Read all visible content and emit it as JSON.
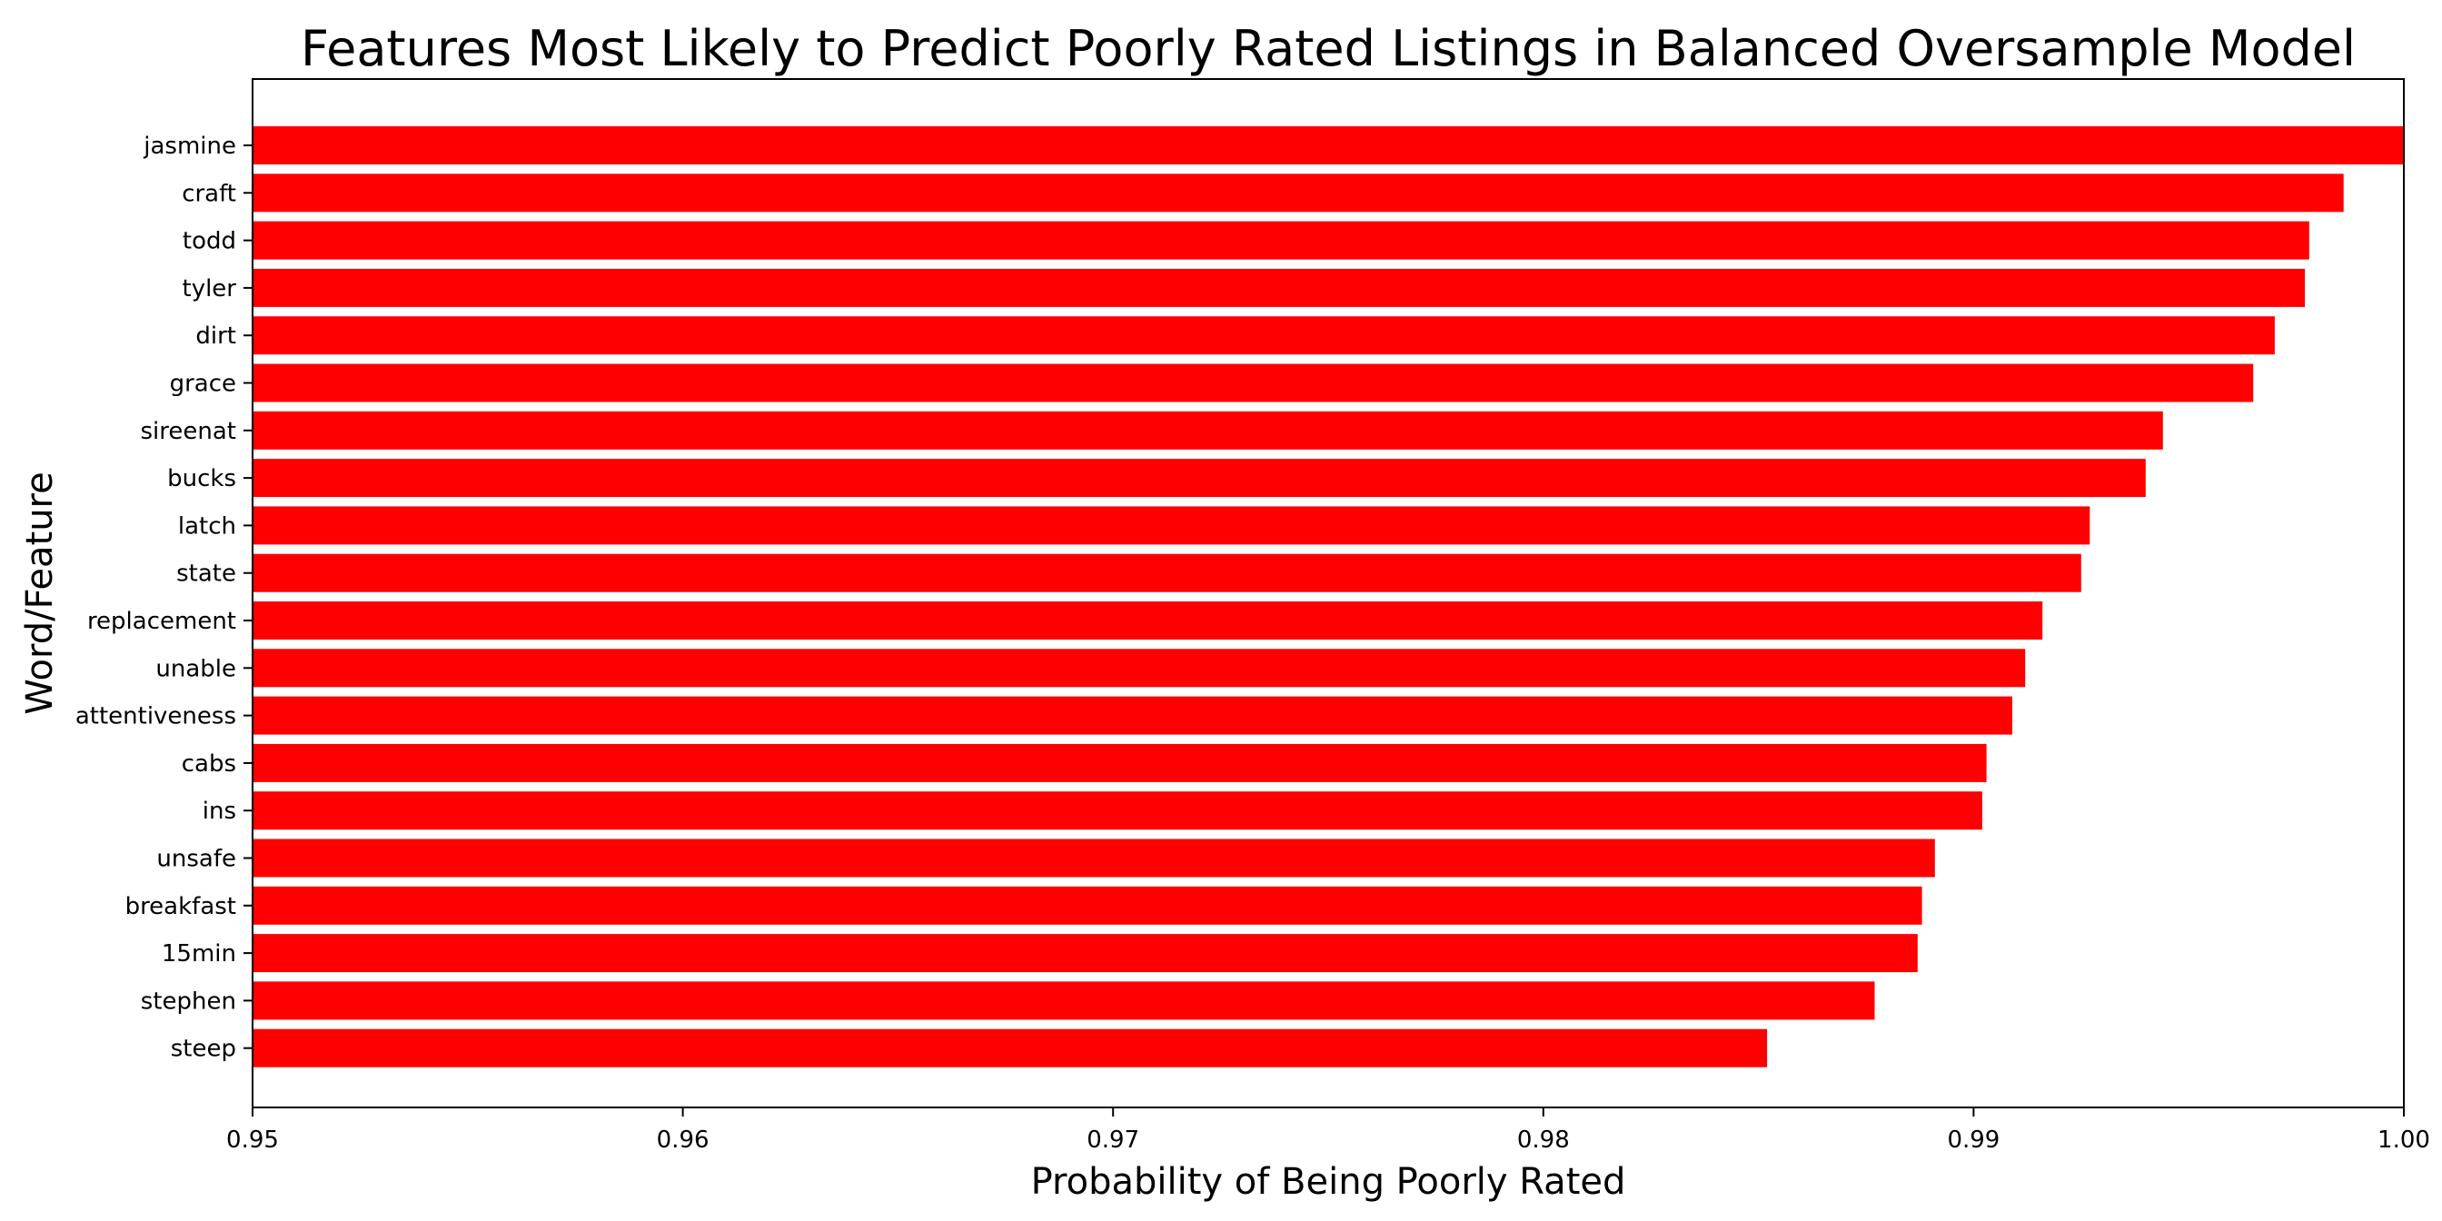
{
  "chart_data": {
    "type": "bar",
    "orientation": "horizontal",
    "title": "Features Most Likely to Predict Poorly Rated Listings in Balanced Oversample Model",
    "xlabel": "Probability of Being Poorly Rated",
    "ylabel": "Word/Feature",
    "xlim": [
      0.95,
      1.0
    ],
    "xticks": [
      "0.95",
      "0.96",
      "0.97",
      "0.98",
      "0.99",
      "1.00"
    ],
    "bar_color": "#ff0000",
    "grid": false,
    "categories": [
      "jasmine",
      "craft",
      "todd",
      "tyler",
      "dirt",
      "grace",
      "sireenat",
      "bucks",
      "latch",
      "state",
      "replacement",
      "unable",
      "attentiveness",
      "cabs",
      "ins",
      "unsafe",
      "breakfast",
      "15min",
      "stephen",
      "steep"
    ],
    "values": [
      1.0,
      0.9986,
      0.9978,
      0.9977,
      0.997,
      0.9965,
      0.9944,
      0.994,
      0.9927,
      0.9925,
      0.9916,
      0.9912,
      0.9909,
      0.9903,
      0.9902,
      0.9891,
      0.9888,
      0.9887,
      0.9877,
      0.9852
    ]
  }
}
